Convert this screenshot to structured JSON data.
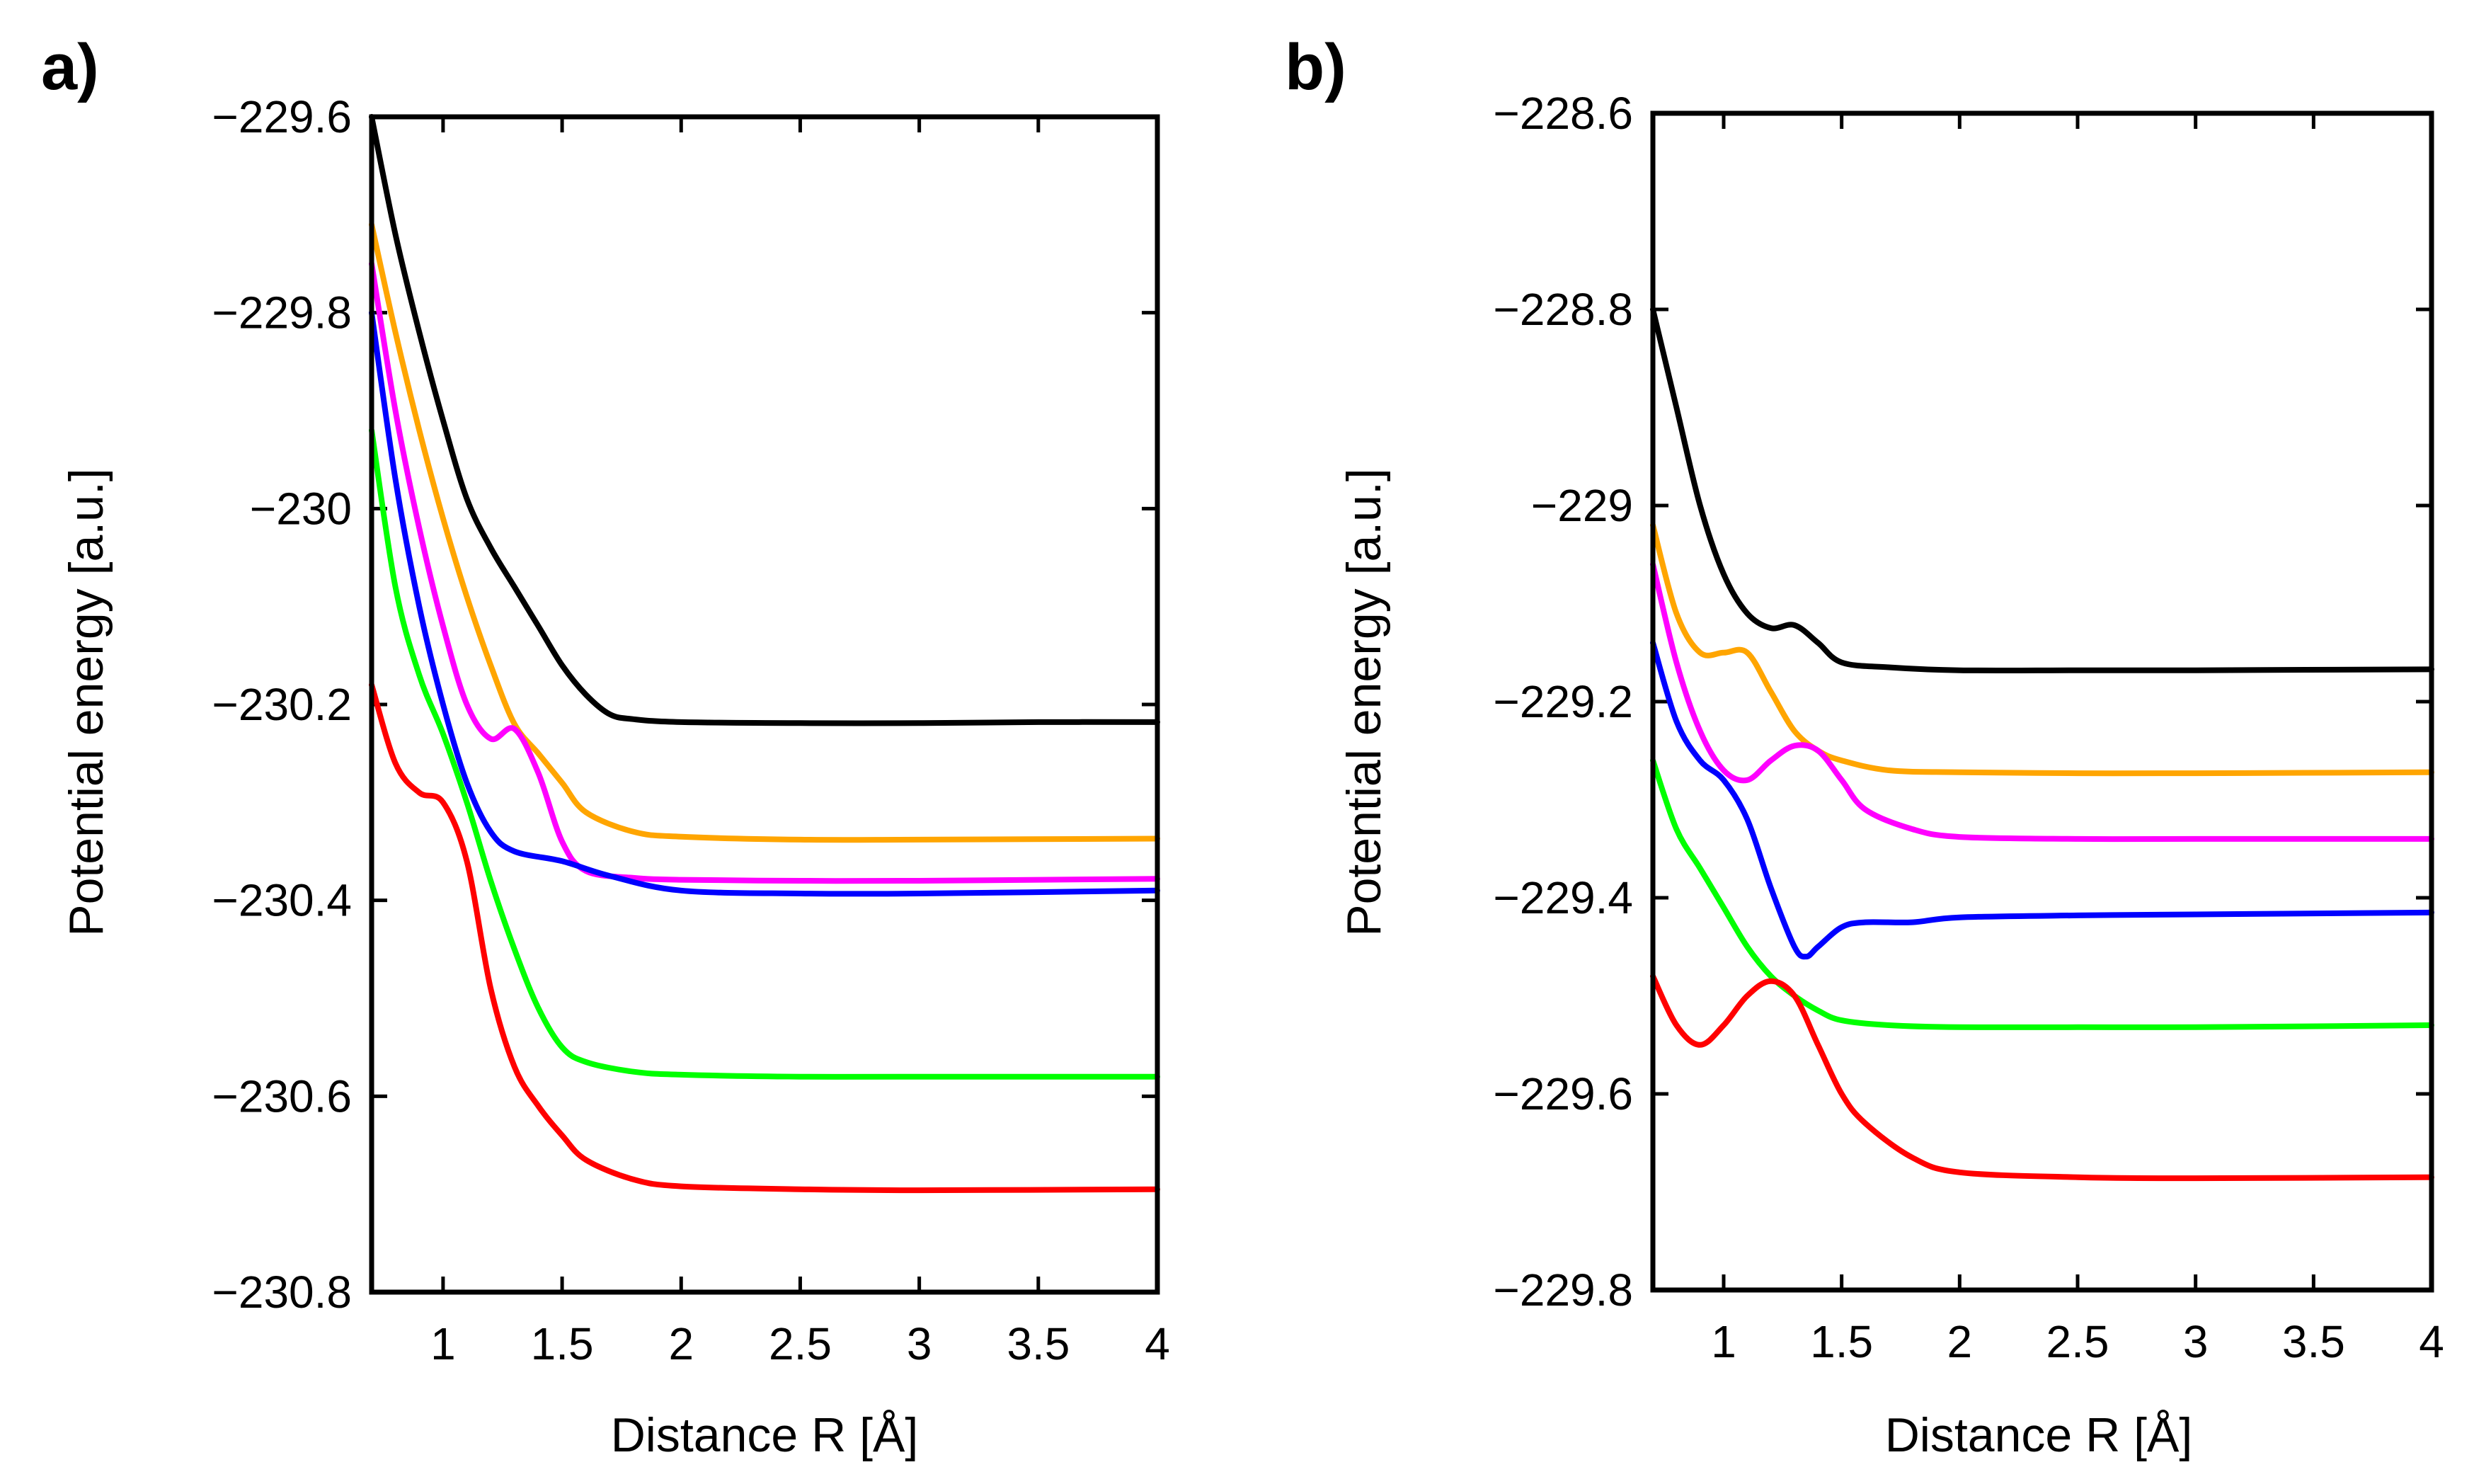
{
  "chart_data": [
    {
      "type": "line",
      "panel_label": "a)",
      "xlabel": "Distance R [Å]",
      "ylabel": "Potential energy [a.u.]",
      "xlim": [
        0.7,
        4
      ],
      "ylim": [
        -230.8,
        -229.6
      ],
      "xticks": [
        1,
        1.5,
        2,
        2.5,
        3,
        3.5,
        4
      ],
      "xtick_labels": [
        "1",
        "1.5",
        "2",
        "2.5",
        "3",
        "3.5",
        "4"
      ],
      "yticks": [
        -229.6,
        -229.8,
        -230,
        -230.2,
        -230.4,
        -230.6,
        -230.8
      ],
      "ytick_labels": [
        "−229.6",
        "−229.8",
        "−230",
        "−230.2",
        "−230.4",
        "−230.6",
        "−230.8"
      ],
      "series": [
        {
          "name": "black",
          "color": "#000000",
          "points": [
            [
              0.7,
              -229.6
            ],
            [
              0.8,
              -229.72
            ],
            [
              0.9,
              -229.82
            ],
            [
              1.0,
              -229.91
            ],
            [
              1.1,
              -229.99
            ],
            [
              1.2,
              -230.04
            ],
            [
              1.3,
              -230.08
            ],
            [
              1.4,
              -230.12
            ],
            [
              1.5,
              -230.16
            ],
            [
              1.6,
              -230.19
            ],
            [
              1.7,
              -230.21
            ],
            [
              1.8,
              -230.215
            ],
            [
              2.0,
              -230.218
            ],
            [
              2.5,
              -230.219
            ],
            [
              3.0,
              -230.219
            ],
            [
              3.5,
              -230.218
            ],
            [
              4.0,
              -230.218
            ]
          ]
        },
        {
          "name": "orange",
          "color": "#ffa500",
          "points": [
            [
              0.7,
              -229.71
            ],
            [
              0.8,
              -229.82
            ],
            [
              0.9,
              -229.92
            ],
            [
              1.0,
              -230.01
            ],
            [
              1.1,
              -230.09
            ],
            [
              1.2,
              -230.16
            ],
            [
              1.3,
              -230.22
            ],
            [
              1.4,
              -230.25
            ],
            [
              1.5,
              -230.28
            ],
            [
              1.6,
              -230.31
            ],
            [
              1.8,
              -230.33
            ],
            [
              2.0,
              -230.335
            ],
            [
              2.5,
              -230.338
            ],
            [
              3.0,
              -230.338
            ],
            [
              4.0,
              -230.337
            ]
          ]
        },
        {
          "name": "magenta",
          "color": "#ff00ff",
          "points": [
            [
              0.7,
              -229.75
            ],
            [
              0.8,
              -229.9
            ],
            [
              0.9,
              -230.02
            ],
            [
              1.0,
              -230.12
            ],
            [
              1.1,
              -230.2
            ],
            [
              1.2,
              -230.235
            ],
            [
              1.3,
              -230.225
            ],
            [
              1.4,
              -230.27
            ],
            [
              1.5,
              -230.34
            ],
            [
              1.6,
              -230.37
            ],
            [
              1.8,
              -230.377
            ],
            [
              2.0,
              -230.379
            ],
            [
              2.5,
              -230.38
            ],
            [
              3.0,
              -230.38
            ],
            [
              4.0,
              -230.378
            ]
          ]
        },
        {
          "name": "blue",
          "color": "#0000ff",
          "points": [
            [
              0.7,
              -229.8
            ],
            [
              0.8,
              -229.97
            ],
            [
              0.9,
              -230.1
            ],
            [
              1.0,
              -230.2
            ],
            [
              1.1,
              -230.28
            ],
            [
              1.2,
              -230.33
            ],
            [
              1.3,
              -230.35
            ],
            [
              1.5,
              -230.36
            ],
            [
              1.7,
              -230.375
            ],
            [
              2.0,
              -230.39
            ],
            [
              2.5,
              -230.393
            ],
            [
              3.0,
              -230.393
            ],
            [
              4.0,
              -230.39
            ]
          ]
        },
        {
          "name": "green",
          "color": "#00ff00",
          "points": [
            [
              0.7,
              -229.92
            ],
            [
              0.8,
              -230.08
            ],
            [
              0.9,
              -230.17
            ],
            [
              1.0,
              -230.23
            ],
            [
              1.1,
              -230.3
            ],
            [
              1.2,
              -230.38
            ],
            [
              1.3,
              -230.45
            ],
            [
              1.4,
              -230.51
            ],
            [
              1.5,
              -230.55
            ],
            [
              1.6,
              -230.565
            ],
            [
              1.8,
              -230.575
            ],
            [
              2.0,
              -230.578
            ],
            [
              2.5,
              -230.58
            ],
            [
              3.0,
              -230.58
            ],
            [
              4.0,
              -230.58
            ]
          ]
        },
        {
          "name": "red",
          "color": "#ff0000",
          "points": [
            [
              0.7,
              -230.18
            ],
            [
              0.8,
              -230.26
            ],
            [
              0.9,
              -230.29
            ],
            [
              1.0,
              -230.3
            ],
            [
              1.1,
              -230.36
            ],
            [
              1.2,
              -230.49
            ],
            [
              1.3,
              -230.57
            ],
            [
              1.4,
              -230.61
            ],
            [
              1.5,
              -230.64
            ],
            [
              1.6,
              -230.665
            ],
            [
              1.8,
              -230.685
            ],
            [
              2.0,
              -230.692
            ],
            [
              2.5,
              -230.695
            ],
            [
              3.0,
              -230.696
            ],
            [
              4.0,
              -230.695
            ]
          ]
        }
      ]
    },
    {
      "type": "line",
      "panel_label": "b)",
      "xlabel": "Distance R [Å]",
      "ylabel": "Potential energy [a.u.]",
      "xlim": [
        0.7,
        4
      ],
      "ylim": [
        -229.8,
        -228.6
      ],
      "xticks": [
        1,
        1.5,
        2,
        2.5,
        3,
        3.5,
        4
      ],
      "xtick_labels": [
        "1",
        "1.5",
        "2",
        "2.5",
        "3",
        "3.5",
        "4"
      ],
      "yticks": [
        -228.6,
        -228.8,
        -229,
        -229.2,
        -229.4,
        -229.6,
        -229.8
      ],
      "ytick_labels": [
        "−228.6",
        "−228.8",
        "−229",
        "−229.2",
        "−229.4",
        "−229.6",
        "−229.8"
      ],
      "series": [
        {
          "name": "black",
          "color": "#000000",
          "points": [
            [
              0.7,
              -228.8
            ],
            [
              0.8,
              -228.9
            ],
            [
              0.9,
              -229.0
            ],
            [
              1.0,
              -229.07
            ],
            [
              1.1,
              -229.11
            ],
            [
              1.2,
              -229.125
            ],
            [
              1.3,
              -229.122
            ],
            [
              1.4,
              -229.14
            ],
            [
              1.5,
              -229.16
            ],
            [
              1.7,
              -229.165
            ],
            [
              2.0,
              -229.168
            ],
            [
              2.5,
              -229.168
            ],
            [
              3.0,
              -229.168
            ],
            [
              4.0,
              -229.167
            ]
          ]
        },
        {
          "name": "orange",
          "color": "#ffa500",
          "points": [
            [
              0.7,
              -229.02
            ],
            [
              0.8,
              -229.11
            ],
            [
              0.9,
              -229.15
            ],
            [
              1.0,
              -229.15
            ],
            [
              1.1,
              -229.15
            ],
            [
              1.2,
              -229.19
            ],
            [
              1.3,
              -229.23
            ],
            [
              1.4,
              -229.25
            ],
            [
              1.5,
              -229.26
            ],
            [
              1.7,
              -229.27
            ],
            [
              2.0,
              -229.272
            ],
            [
              2.5,
              -229.273
            ],
            [
              3.0,
              -229.273
            ],
            [
              4.0,
              -229.272
            ]
          ]
        },
        {
          "name": "magenta",
          "color": "#ff00ff",
          "points": [
            [
              0.7,
              -229.06
            ],
            [
              0.8,
              -229.16
            ],
            [
              0.9,
              -229.23
            ],
            [
              1.0,
              -229.27
            ],
            [
              1.1,
              -229.28
            ],
            [
              1.2,
              -229.26
            ],
            [
              1.3,
              -229.245
            ],
            [
              1.4,
              -229.25
            ],
            [
              1.5,
              -229.28
            ],
            [
              1.6,
              -229.31
            ],
            [
              1.8,
              -229.33
            ],
            [
              2.0,
              -229.338
            ],
            [
              2.5,
              -229.34
            ],
            [
              3.0,
              -229.34
            ],
            [
              4.0,
              -229.34
            ]
          ]
        },
        {
          "name": "blue",
          "color": "#0000ff",
          "points": [
            [
              0.7,
              -229.14
            ],
            [
              0.8,
              -229.22
            ],
            [
              0.9,
              -229.26
            ],
            [
              1.0,
              -229.28
            ],
            [
              1.1,
              -229.32
            ],
            [
              1.2,
              -229.39
            ],
            [
              1.3,
              -229.45
            ],
            [
              1.35,
              -229.46
            ],
            [
              1.4,
              -229.45
            ],
            [
              1.5,
              -229.43
            ],
            [
              1.6,
              -229.425
            ],
            [
              1.8,
              -229.425
            ],
            [
              2.0,
              -229.42
            ],
            [
              2.5,
              -229.418
            ],
            [
              3.0,
              -229.417
            ],
            [
              4.0,
              -229.415
            ]
          ]
        },
        {
          "name": "green",
          "color": "#00ff00",
          "points": [
            [
              0.7,
              -229.26
            ],
            [
              0.8,
              -229.33
            ],
            [
              0.9,
              -229.37
            ],
            [
              1.0,
              -229.41
            ],
            [
              1.1,
              -229.45
            ],
            [
              1.2,
              -229.48
            ],
            [
              1.3,
              -229.5
            ],
            [
              1.4,
              -229.515
            ],
            [
              1.5,
              -229.525
            ],
            [
              1.7,
              -229.53
            ],
            [
              2.0,
              -229.532
            ],
            [
              2.5,
              -229.532
            ],
            [
              3.0,
              -229.532
            ],
            [
              4.0,
              -229.53
            ]
          ]
        },
        {
          "name": "red",
          "color": "#ff0000",
          "points": [
            [
              0.7,
              -229.48
            ],
            [
              0.8,
              -229.53
            ],
            [
              0.9,
              -229.55
            ],
            [
              1.0,
              -229.53
            ],
            [
              1.1,
              -229.5
            ],
            [
              1.2,
              -229.485
            ],
            [
              1.3,
              -229.5
            ],
            [
              1.4,
              -229.55
            ],
            [
              1.5,
              -229.6
            ],
            [
              1.6,
              -229.63
            ],
            [
              1.8,
              -229.665
            ],
            [
              2.0,
              -229.68
            ],
            [
              2.5,
              -229.685
            ],
            [
              3.0,
              -229.686
            ],
            [
              4.0,
              -229.685
            ]
          ]
        }
      ]
    }
  ]
}
